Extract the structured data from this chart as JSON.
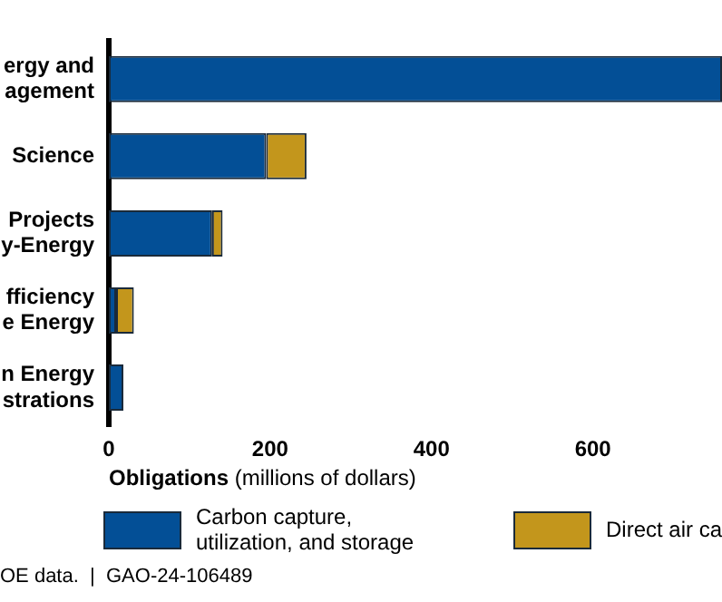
{
  "chart_data": {
    "type": "bar",
    "orientation": "horizontal",
    "stacked": true,
    "categories": [
      "ergy and\nagement",
      "Science",
      "Projects\ny-Energy",
      "fficiency\ne Energy",
      "n Energy\nstrations"
    ],
    "series": [
      {
        "name": "Carbon capture,\nutilization, and storage",
        "color": "#034f96",
        "values": [
          760,
          195,
          128,
          9,
          18
        ]
      },
      {
        "name": "Direct air ca",
        "color": "#c3961c",
        "values": [
          null,
          50,
          13,
          22,
          null
        ]
      }
    ],
    "xlim": [
      0,
      760
    ],
    "xticks": [
      0,
      200,
      400,
      600
    ],
    "grid": false,
    "legend": "bottom",
    "xlabel": "Obligations (millions of dollars)",
    "annotations": [
      "OE data.  |  GAO-24-106489"
    ]
  }
}
